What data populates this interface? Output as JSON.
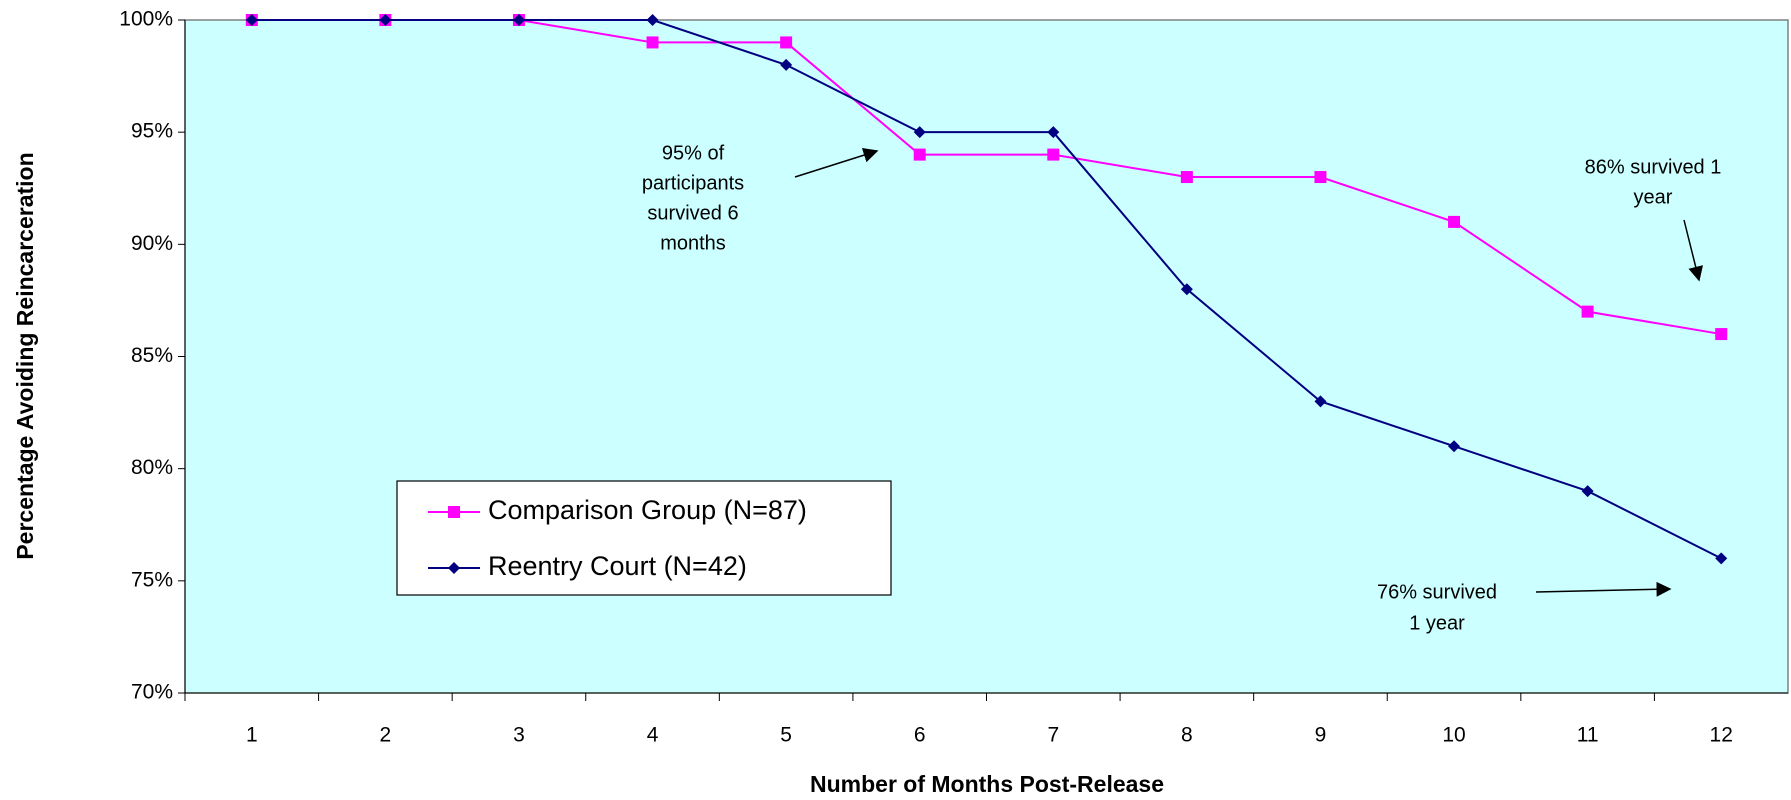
{
  "chart_data": {
    "type": "line",
    "x_label": "Number of Months Post-Release",
    "y_label": "Percentage Avoiding Reincarceration",
    "categories": [
      "1",
      "2",
      "3",
      "4",
      "5",
      "6",
      "7",
      "8",
      "9",
      "10",
      "11",
      "12"
    ],
    "series": [
      {
        "name": "Comparison Group (N=87)",
        "color": "#ff00ff",
        "marker": "square",
        "values": [
          100,
          100,
          100,
          99,
          99,
          94,
          94,
          93,
          93,
          91,
          87,
          86
        ]
      },
      {
        "name": "Reentry Court (N=42)",
        "color": "#000080",
        "marker": "diamond",
        "values": [
          100,
          100,
          100,
          100,
          98,
          95,
          95,
          88,
          83,
          81,
          79,
          76
        ]
      }
    ],
    "ylim": [
      70,
      100
    ],
    "yticks": [
      {
        "value": 70,
        "label": "70%"
      },
      {
        "value": 75,
        "label": "75%"
      },
      {
        "value": 80,
        "label": "80%"
      },
      {
        "value": 85,
        "label": "85%"
      },
      {
        "value": 90,
        "label": "90%"
      },
      {
        "value": 95,
        "label": "95%"
      },
      {
        "value": 100,
        "label": "100%"
      }
    ],
    "background": "#ccffff",
    "annotations": [
      {
        "lines": [
          "95% of",
          "participants",
          "survived 6",
          "months"
        ]
      },
      {
        "lines": [
          "86% survived 1",
          "year"
        ]
      },
      {
        "lines": [
          "76% survived",
          "1 year"
        ]
      }
    ]
  }
}
